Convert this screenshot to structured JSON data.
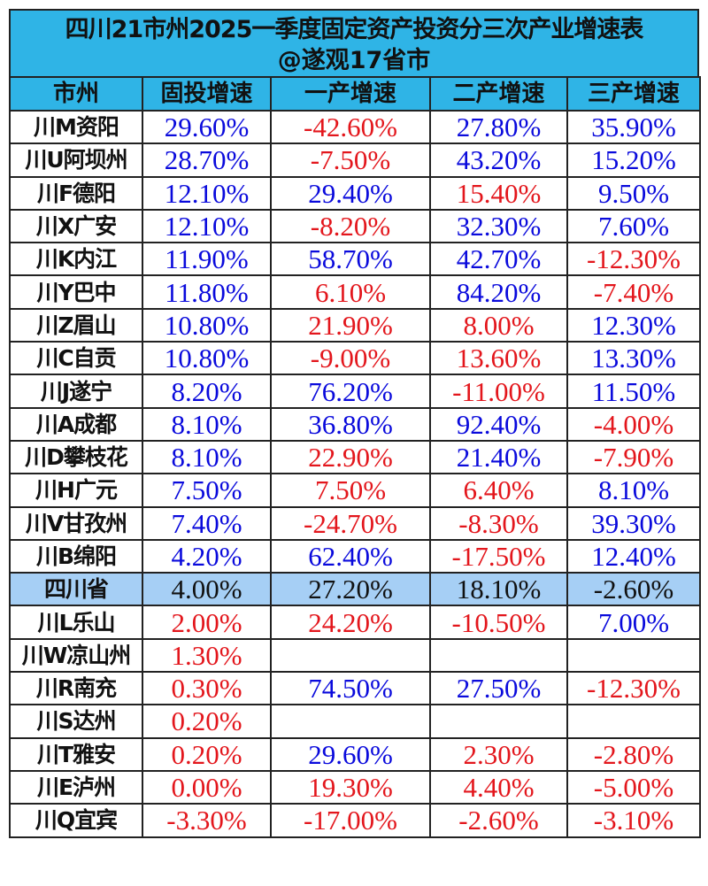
{
  "title": {
    "line1": "四川21市州2025一季度固定资产投资分三次产业增速表",
    "line2": "@遂观17省市"
  },
  "colors": {
    "above_province": "#0a0adc",
    "below_province": "#e3161c",
    "header_bg": "#2fb4e6",
    "province_bg": "#a6cff5"
  },
  "headers": [
    "市州",
    "固投增速",
    "一产增速",
    "二产增速",
    "三产增速"
  ],
  "province_row_name": "四川省",
  "rows": [
    [
      "川M资阳",
      "29.60%",
      "-42.60%",
      "27.80%",
      "35.90%"
    ],
    [
      "川U阿坝州",
      "28.70%",
      "-7.50%",
      "43.20%",
      "15.20%"
    ],
    [
      "川F德阳",
      "12.10%",
      "29.40%",
      "15.40%",
      "9.50%"
    ],
    [
      "川X广安",
      "12.10%",
      "-8.20%",
      "32.30%",
      "7.60%"
    ],
    [
      "川K内江",
      "11.90%",
      "58.70%",
      "42.70%",
      "-12.30%"
    ],
    [
      "川Y巴中",
      "11.80%",
      "6.10%",
      "84.20%",
      "-7.40%"
    ],
    [
      "川Z眉山",
      "10.80%",
      "21.90%",
      "8.00%",
      "12.30%"
    ],
    [
      "川C自贡",
      "10.80%",
      "-9.00%",
      "13.60%",
      "13.30%"
    ],
    [
      "川J遂宁",
      "8.20%",
      "76.20%",
      "-11.00%",
      "11.50%"
    ],
    [
      "川A成都",
      "8.10%",
      "36.80%",
      "92.40%",
      "-4.00%"
    ],
    [
      "川D攀枝花",
      "8.10%",
      "22.90%",
      "21.40%",
      "-7.90%"
    ],
    [
      "川H广元",
      "7.50%",
      "7.50%",
      "6.40%",
      "8.10%"
    ],
    [
      "川V甘孜州",
      "7.40%",
      "-24.70%",
      "-8.30%",
      "39.30%"
    ],
    [
      "川B绵阳",
      "4.20%",
      "62.40%",
      "-17.50%",
      "12.40%"
    ],
    [
      "四川省",
      "4.00%",
      "27.20%",
      "18.10%",
      "-2.60%"
    ],
    [
      "川L乐山",
      "2.00%",
      "24.20%",
      "-10.50%",
      "7.00%"
    ],
    [
      "川W凉山州",
      "1.30%",
      "",
      "",
      ""
    ],
    [
      "川R南充",
      "0.30%",
      "74.50%",
      "27.50%",
      "-12.30%"
    ],
    [
      "川S达州",
      "0.20%",
      "",
      "",
      ""
    ],
    [
      "川T雅安",
      "0.20%",
      "29.60%",
      "2.30%",
      "-2.80%"
    ],
    [
      "川E泸州",
      "0.00%",
      "19.30%",
      "4.40%",
      "-5.00%"
    ],
    [
      "川Q宜宾",
      "-3.30%",
      "-17.00%",
      "-2.60%",
      "-3.10%"
    ]
  ]
}
